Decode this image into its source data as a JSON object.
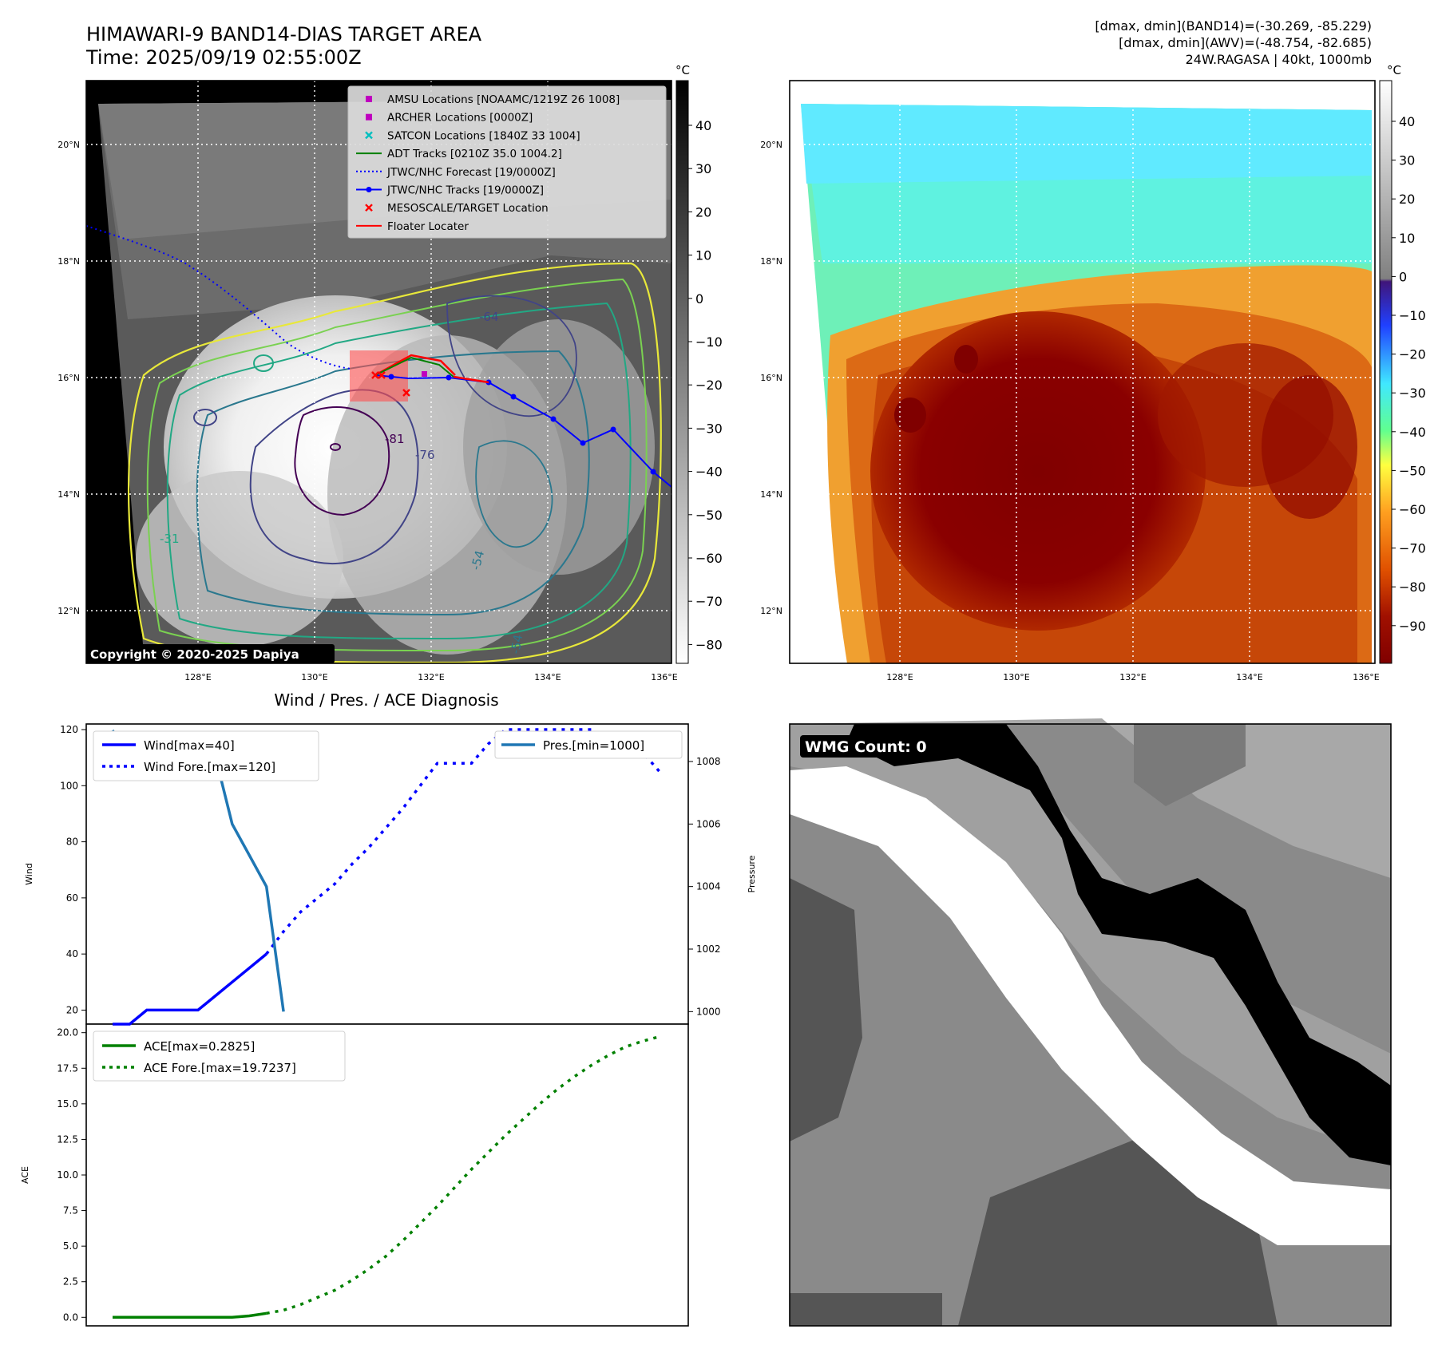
{
  "header": {
    "title_line1": "HIMAWARI-9 BAND14-DIAS TARGET AREA",
    "title_line2": "Time: 2025/09/19 02:55:00Z",
    "info_line1": "[dmax, dmin](BAND14)=(-30.269, -85.229)",
    "info_line2": "[dmax, dmin](AWV)=(-48.754, -82.685)",
    "info_line3": "24W.RAGASA | 40kt, 1000mb"
  },
  "map": {
    "lat_labels": [
      "20°N",
      "18°N",
      "16°N",
      "14°N",
      "12°N"
    ],
    "lon_labels": [
      "128°E",
      "130°E",
      "132°E",
      "134°E",
      "136°E"
    ],
    "copyright": "Copyright © 2020-2025 Dapiya",
    "contour_labels": [
      "-64",
      "-76",
      "-81",
      "-54",
      "-31",
      "-54"
    ],
    "legend": [
      {
        "label": "AMSU Locations [NOAAMC/1219Z 26 1008]",
        "color": "#bf00bf",
        "marker": "square"
      },
      {
        "label": "ARCHER Locations [0000Z]",
        "color": "#bf00bf",
        "marker": "square"
      },
      {
        "label": "SATCON Locations [1840Z 33 1004]",
        "color": "#00bfbf",
        "marker": "x"
      },
      {
        "label": "ADT Tracks [0210Z 35.0 1004.2]",
        "color": "#008000",
        "marker": "line"
      },
      {
        "label": "JTWC/NHC Forecast [19/0000Z]",
        "color": "#0000ff",
        "marker": "dotted"
      },
      {
        "label": "JTWC/NHC Tracks [19/0000Z]",
        "color": "#0000ff",
        "marker": "line-dot"
      },
      {
        "label": "MESOSCALE/TARGET Location",
        "color": "#ff0000",
        "marker": "x"
      },
      {
        "label": "Floater Locater",
        "color": "#ff0000",
        "marker": "line"
      }
    ]
  },
  "colorbars": {
    "unit": "°C",
    "gray_ticks": [
      "40",
      "30",
      "20",
      "10",
      "0",
      "−10",
      "−20",
      "−30",
      "−40",
      "−50",
      "−60",
      "−70",
      "−80"
    ],
    "color_ticks": [
      "40",
      "30",
      "20",
      "10",
      "0",
      "−10",
      "−20",
      "−30",
      "−40",
      "−50",
      "−60",
      "−70",
      "−80",
      "−90"
    ]
  },
  "wmg": {
    "label": "WMG Count: 0"
  },
  "chart_data": [
    {
      "type": "line",
      "title": "Wind / Pres. / ACE Diagnosis",
      "xlabel": "",
      "ylabel": "Wind",
      "ylabel_right": "Pressure",
      "ylim": [
        15,
        122
      ],
      "ylim_right": [
        999.6,
        1009.2
      ],
      "yticks": [
        "20",
        "40",
        "60",
        "80",
        "100",
        "120"
      ],
      "yticks_right": [
        "1000",
        "1002",
        "1004",
        "1006",
        "1008"
      ],
      "series": [
        {
          "name": "Wind[max=40]",
          "axis": "left",
          "style": "solid",
          "color": "#0000ff",
          "x": [
            0,
            1,
            2,
            3,
            4,
            5,
            6,
            7,
            8,
            9
          ],
          "y": [
            15,
            15,
            20,
            20,
            20,
            20,
            25,
            30,
            35,
            40
          ]
        },
        {
          "name": "Wind Fore.[max=120]",
          "axis": "left",
          "style": "dotted",
          "color": "#0000ff",
          "x": [
            9,
            10,
            11,
            12,
            13,
            14,
            15,
            16,
            17,
            18,
            19,
            20,
            21,
            22,
            23,
            24,
            25,
            26,
            27,
            28,
            29,
            30,
            31,
            32
          ],
          "y": [
            40,
            48,
            55,
            60,
            65,
            72,
            78,
            85,
            92,
            100,
            108,
            108,
            108,
            115,
            120,
            120,
            120,
            120,
            120,
            120,
            112,
            112,
            112,
            105
          ]
        },
        {
          "name": "Pres.[min=1000]",
          "axis": "right",
          "style": "solid",
          "color": "#1f77b4",
          "x": [
            0,
            1,
            2,
            3,
            4,
            5,
            6,
            7,
            8,
            9,
            10
          ],
          "y": [
            1009,
            1008,
            1008,
            1008,
            1008,
            1008.2,
            1008.2,
            1006,
            1005,
            1004,
            1000
          ]
        }
      ]
    },
    {
      "type": "line",
      "title": "",
      "xlabel": "",
      "ylabel": "ACE",
      "ylim": [
        -0.6,
        20.6
      ],
      "yticks": [
        "0.0",
        "2.5",
        "5.0",
        "7.5",
        "10.0",
        "12.5",
        "15.0",
        "17.5",
        "20.0"
      ],
      "series": [
        {
          "name": "ACE[max=0.2825]",
          "style": "solid",
          "color": "#008000",
          "x": [
            0,
            1,
            2,
            3,
            4,
            5,
            6,
            7,
            8,
            9
          ],
          "y": [
            0,
            0,
            0,
            0,
            0,
            0,
            0,
            0,
            0.1,
            0.2825
          ]
        },
        {
          "name": "ACE Fore.[max=19.7237]",
          "style": "dotted",
          "color": "#008000",
          "x": [
            9,
            10,
            11,
            12,
            13,
            14,
            15,
            16,
            17,
            18,
            19,
            20,
            21,
            22,
            23,
            24,
            25,
            26,
            27,
            28,
            29,
            30,
            31,
            32
          ],
          "y": [
            0.2825,
            0.5,
            0.9,
            1.4,
            1.9,
            2.6,
            3.4,
            4.3,
            5.4,
            6.6,
            7.8,
            9.1,
            10.4,
            11.6,
            12.8,
            13.9,
            15.0,
            16.0,
            16.9,
            17.7,
            18.4,
            19.0,
            19.4,
            19.7237
          ]
        }
      ]
    }
  ]
}
